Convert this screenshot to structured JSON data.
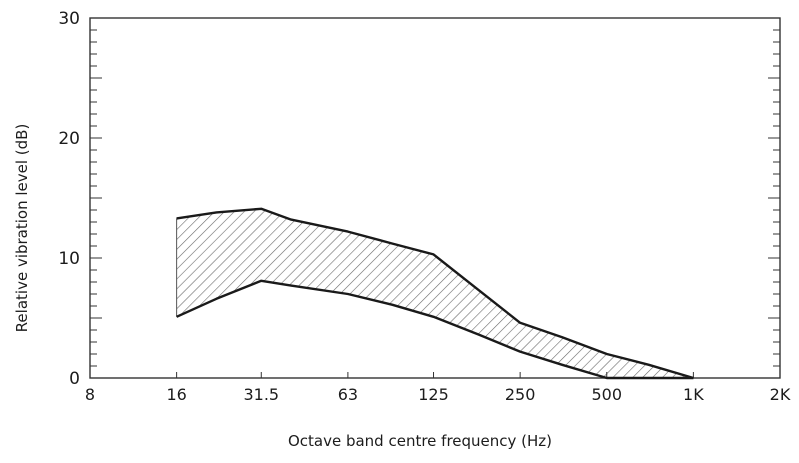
{
  "chart_data": {
    "type": "area",
    "title": "",
    "xlabel": "Octave band centre frequency (Hz)",
    "ylabel": "Relative vibration level (dB)",
    "x_scale": "log2",
    "categories": [
      "8",
      "16",
      "31.5",
      "63",
      "125",
      "250",
      "500",
      "1K",
      "2K"
    ],
    "x_values": [
      8,
      16,
      31.5,
      63,
      125,
      250,
      500,
      1000,
      2000
    ],
    "xlim": [
      8,
      2000
    ],
    "ylim": [
      0,
      30
    ],
    "y_ticks": [
      "0",
      "10",
      "20",
      "30"
    ],
    "y_tick_values": [
      0,
      10,
      20,
      30
    ],
    "grid": false,
    "band": {
      "fill": "hatched",
      "upper": {
        "x": [
          16,
          22,
          31.5,
          40,
          63,
          90,
          125,
          180,
          250,
          350,
          500,
          700,
          1000
        ],
        "y": [
          13.3,
          13.8,
          14.1,
          13.2,
          12.2,
          11.2,
          10.3,
          7.3,
          4.6,
          3.4,
          2.0,
          1.1,
          0
        ]
      },
      "lower": {
        "x": [
          16,
          22,
          31.5,
          40,
          63,
          90,
          125,
          180,
          250,
          350,
          500,
          700,
          1000
        ],
        "y": [
          5.1,
          6.6,
          8.1,
          7.7,
          7.0,
          6.1,
          5.1,
          3.6,
          2.2,
          1.1,
          0,
          0,
          0
        ]
      }
    },
    "colors": {
      "line": "#1a1a1a",
      "hatch": "#6a6a6a",
      "axis": "#333333"
    }
  }
}
